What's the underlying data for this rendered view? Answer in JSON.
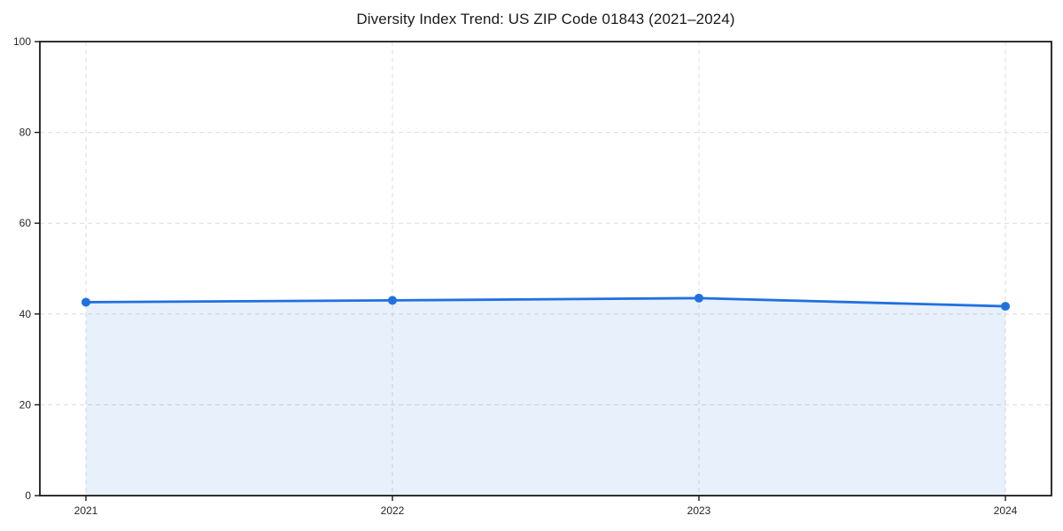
{
  "chart_data": {
    "type": "line",
    "title": "Diversity Index Trend: US ZIP Code 01843 (2021–2024)",
    "categories": [
      "2021",
      "2022",
      "2023",
      "2024"
    ],
    "values": [
      42.6,
      43.0,
      43.5,
      41.7
    ],
    "series": [
      {
        "name": "Diversity Index",
        "values": [
          42.6,
          43.0,
          43.5,
          41.7
        ]
      }
    ],
    "xlabel": "",
    "ylabel": "",
    "ylim": [
      0,
      100
    ],
    "yticks": [
      0,
      20,
      40,
      60,
      80,
      100
    ],
    "grid": "dashed, horizontal and vertical",
    "legend_position": "none",
    "area_fill": true,
    "marker": "circle",
    "colors": {
      "line": "#2070e0",
      "marker": "#2070e0",
      "fill": "rgba(32,112,224,0.10)",
      "grid": "#dcdcdc",
      "axis": "#1a1a1a",
      "tick_text": "#262626",
      "title_text": "#1a1a1a",
      "background": "#ffffff"
    }
  }
}
